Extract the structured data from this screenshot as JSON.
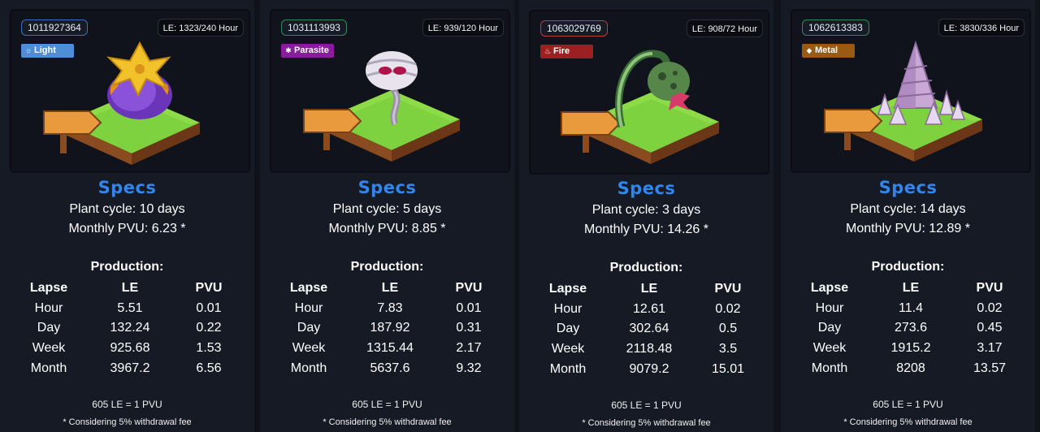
{
  "cards": [
    {
      "id": "1011927364",
      "le_rate": "LE: 1323/240 Hour",
      "type": "Light",
      "type_color": "#4c8fd8",
      "type_icon": "light-icon",
      "plant": "purple-bulb-plant",
      "specs_title": "Specs",
      "plant_cycle": "Plant cycle: 10 days",
      "monthly_pvu": "Monthly PVU: 6.23 *",
      "production_title": "Production:",
      "headers": [
        "Lapse",
        "LE",
        "PVU"
      ],
      "rows": [
        [
          "Hour",
          "5.51",
          "0.01"
        ],
        [
          "Day",
          "132.24",
          "0.22"
        ],
        [
          "Week",
          "925.68",
          "1.53"
        ],
        [
          "Month",
          "3967.2",
          "6.56"
        ]
      ],
      "conversion": "605 LE = 1 PVU",
      "fee_note": "* Considering 5% withdrawal fee"
    },
    {
      "id": "1031113993",
      "le_rate": "LE: 939/120 Hour",
      "type": "Parasite",
      "type_color": "#8a1a9e",
      "type_icon": "parasite-icon",
      "plant": "mummy-flower-plant",
      "specs_title": "Specs",
      "plant_cycle": "Plant cycle: 5 days",
      "monthly_pvu": "Monthly PVU: 8.85 *",
      "production_title": "Production:",
      "headers": [
        "Lapse",
        "LE",
        "PVU"
      ],
      "rows": [
        [
          "Hour",
          "7.83",
          "0.01"
        ],
        [
          "Day",
          "187.92",
          "0.31"
        ],
        [
          "Week",
          "1315.44",
          "2.17"
        ],
        [
          "Month",
          "5637.6",
          "9.32"
        ]
      ],
      "conversion": "605 LE = 1 PVU",
      "fee_note": "* Considering 5% withdrawal fee"
    },
    {
      "id": "1063029769",
      "le_rate": "LE: 908/72 Hour",
      "type": "Fire",
      "type_color": "#9c1f22",
      "type_icon": "fire-icon",
      "plant": "bent-pod-plant",
      "specs_title": "Specs",
      "plant_cycle": "Plant cycle: 3 days",
      "monthly_pvu": "Monthly PVU: 14.26 *",
      "production_title": "Production:",
      "headers": [
        "Lapse",
        "LE",
        "PVU"
      ],
      "rows": [
        [
          "Hour",
          "12.61",
          "0.02"
        ],
        [
          "Day",
          "302.64",
          "0.5"
        ],
        [
          "Week",
          "2118.48",
          "3.5"
        ],
        [
          "Month",
          "9079.2",
          "15.01"
        ]
      ],
      "conversion": "605 LE = 1 PVU",
      "fee_note": "* Considering 5% withdrawal fee"
    },
    {
      "id": "1062613383",
      "le_rate": "LE: 3830/336 Hour",
      "type": "Metal",
      "type_color": "#9c5a10",
      "type_icon": "metal-icon",
      "plant": "spike-plant",
      "specs_title": "Specs",
      "plant_cycle": "Plant cycle: 14 days",
      "monthly_pvu": "Monthly PVU: 12.89 *",
      "production_title": "Production:",
      "headers": [
        "Lapse",
        "LE",
        "PVU"
      ],
      "rows": [
        [
          "Hour",
          "11.4",
          "0.02"
        ],
        [
          "Day",
          "273.6",
          "0.45"
        ],
        [
          "Week",
          "1915.2",
          "3.17"
        ],
        [
          "Month",
          "8208",
          "13.57"
        ]
      ],
      "conversion": "605 LE = 1 PVU",
      "fee_note": "* Considering 5% withdrawal fee"
    }
  ]
}
